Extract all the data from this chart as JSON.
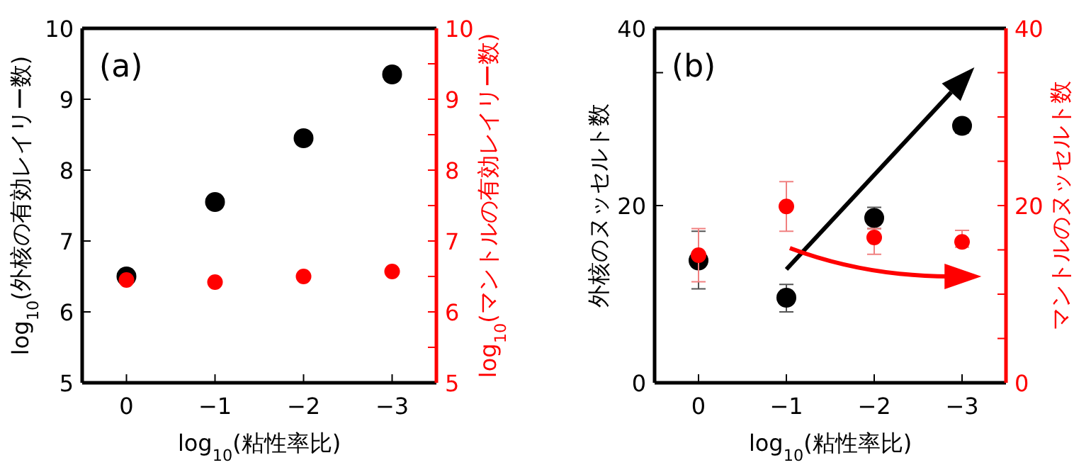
{
  "chart_data": [
    {
      "type": "scatter",
      "marker": "circle",
      "grid": false,
      "xlabel": "log$_{10}$(粘性率比)",
      "ylabel": "log$_{10}$(外核の有効レイリー数)",
      "y2label": "log$_{10}$(マントルの有効レイリー数)",
      "annotations": [
        "(a)"
      ],
      "x": [
        0,
        -1,
        -2,
        -3
      ],
      "xlim": [
        0.5,
        -3.5
      ],
      "xticks": [
        0,
        {
          "value": -1,
          "label": "−1"
        },
        {
          "value": -2,
          "label": "−2"
        },
        {
          "value": -3,
          "label": "−3"
        }
      ],
      "ylim": [
        5,
        10
      ],
      "yticks": [
        5,
        6,
        7,
        8,
        9,
        10
      ],
      "y2lim": [
        5,
        10
      ],
      "y2ticks": [
        5,
        {
          "value": 5.5,
          "label": null
        },
        6,
        {
          "value": 6.5,
          "label": null
        },
        7,
        {
          "value": 7.5,
          "label": null
        },
        8,
        {
          "value": 8.5,
          "label": null
        },
        9,
        {
          "value": 9.5,
          "label": null
        },
        10
      ],
      "series": [
        {
          "color": "#000000",
          "values": [
            6.5,
            7.55,
            8.45,
            9.35
          ]
        },
        {
          "color": "#ff0000",
          "axis": "y2",
          "values": [
            6.45,
            6.42,
            6.5,
            6.57
          ]
        }
      ]
    },
    {
      "type": "scatter",
      "marker": "circle",
      "grid": false,
      "xlabel": "log$_{10}$(粘性率比)",
      "ylabel": "外核のヌッセルト数",
      "y2label": "マントルのヌッセルト数",
      "annotations": [
        "(b)"
      ],
      "x": [
        0,
        -1,
        -2,
        -3
      ],
      "xlim": [
        0.5,
        -3.5
      ],
      "xticks": [
        0,
        {
          "value": -1,
          "label": "−1"
        },
        {
          "value": -2,
          "label": "−2"
        },
        {
          "value": -3,
          "label": "−3"
        }
      ],
      "ylim": [
        0,
        40
      ],
      "yticks": [
        0,
        20,
        {
          "value": 35,
          "label": null
        },
        40
      ],
      "y2lim": [
        0,
        40
      ],
      "y2ticks": [
        0,
        {
          "value": 5,
          "label": null
        },
        {
          "value": 10,
          "label": null
        },
        {
          "value": 15,
          "label": null
        },
        20,
        {
          "value": 25,
          "label": null
        },
        {
          "value": 30,
          "label": null
        },
        {
          "value": 35,
          "label": null
        },
        40
      ],
      "series": [
        {
          "color": "#000000",
          "values": [
            13.8,
            9.6,
            18.6,
            29.0
          ],
          "errors": [
            [
              10.6,
              17.1
            ],
            [
              8.0,
              11.1
            ],
            [
              17.4,
              19.8
            ],
            [
              28.2,
              29.7
            ]
          ]
        },
        {
          "color": "#ff0000",
          "axis": "y2",
          "values": [
            14.4,
            19.9,
            16.4,
            15.9
          ],
          "errors": [
            [
              11.4,
              17.4
            ],
            [
              17.1,
              22.7
            ],
            [
              14.5,
              17.4
            ],
            [
              15.3,
              17.2
            ]
          ]
        }
      ]
    }
  ]
}
